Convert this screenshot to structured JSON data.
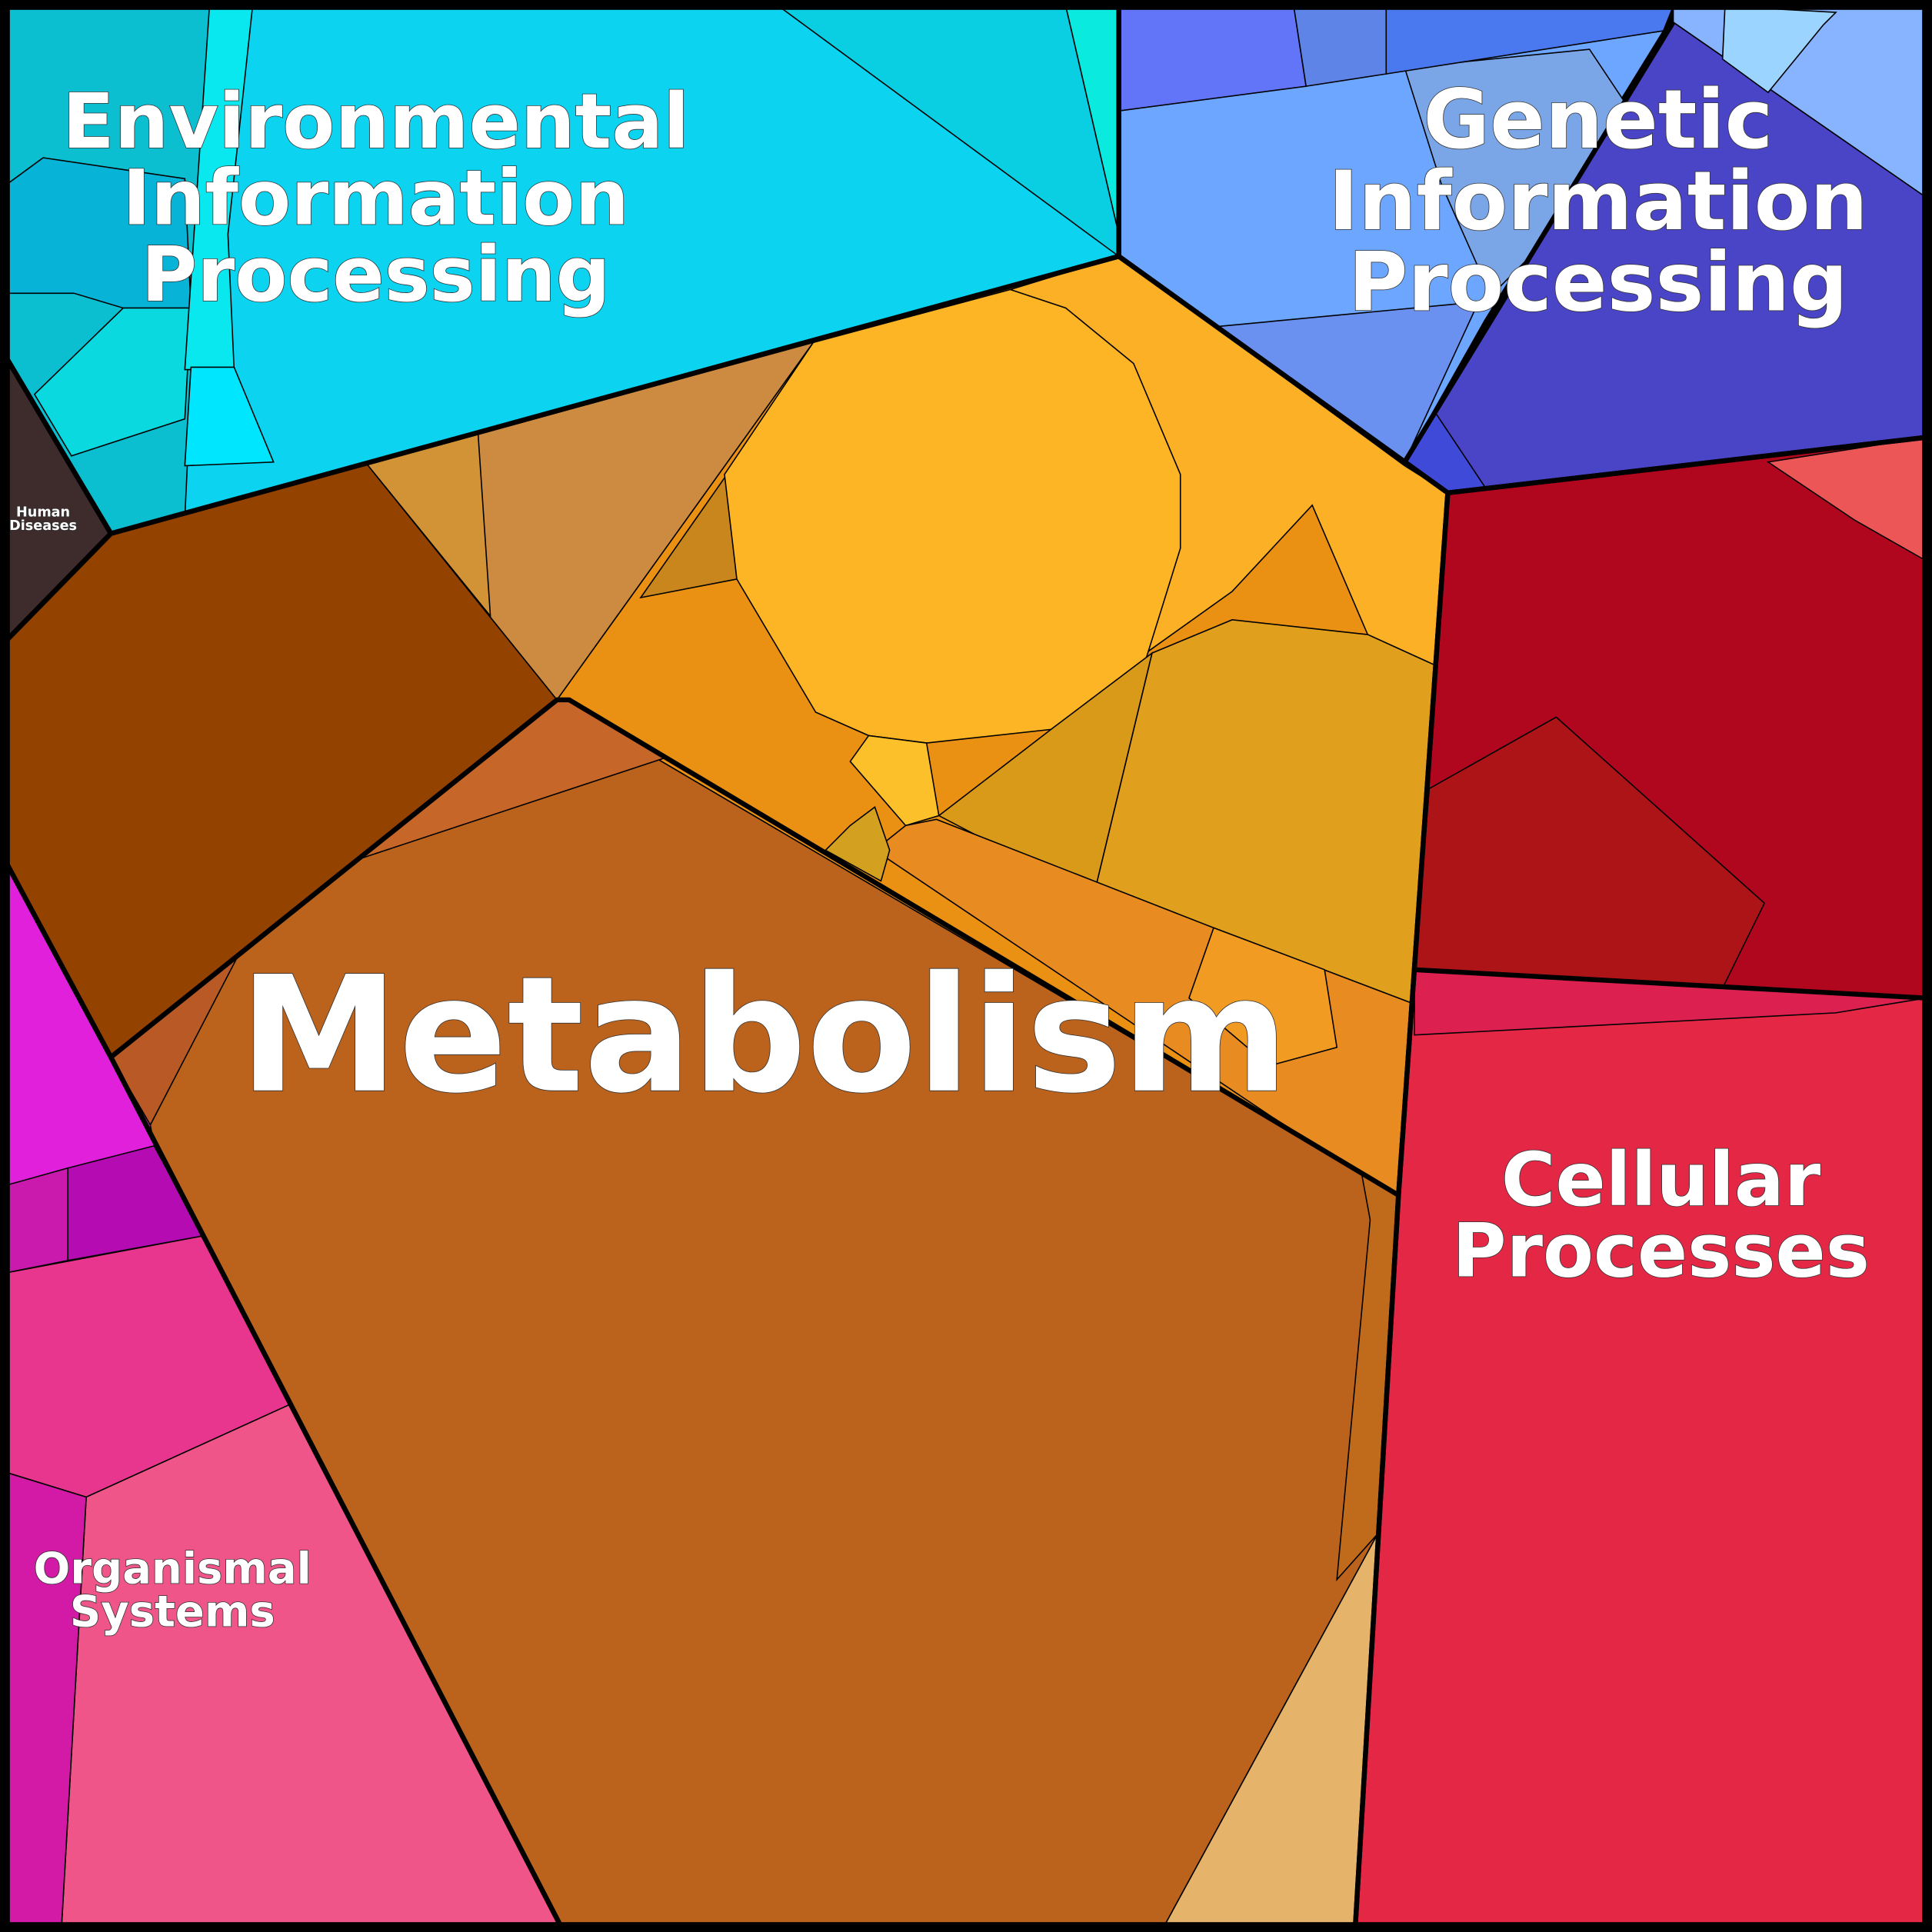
{
  "regions": [
    {
      "label": [
        "Environmental",
        "Information",
        "Processing"
      ]
    },
    {
      "label": [
        "Genetic",
        "Information",
        "Processing"
      ]
    },
    {
      "label": [
        "Human",
        "Diseases"
      ]
    },
    {
      "label": [
        "Metabolism"
      ]
    },
    {
      "label": [
        "Cellular",
        "Processes"
      ]
    },
    {
      "label": [
        "Organismal",
        "Systems"
      ]
    }
  ]
}
